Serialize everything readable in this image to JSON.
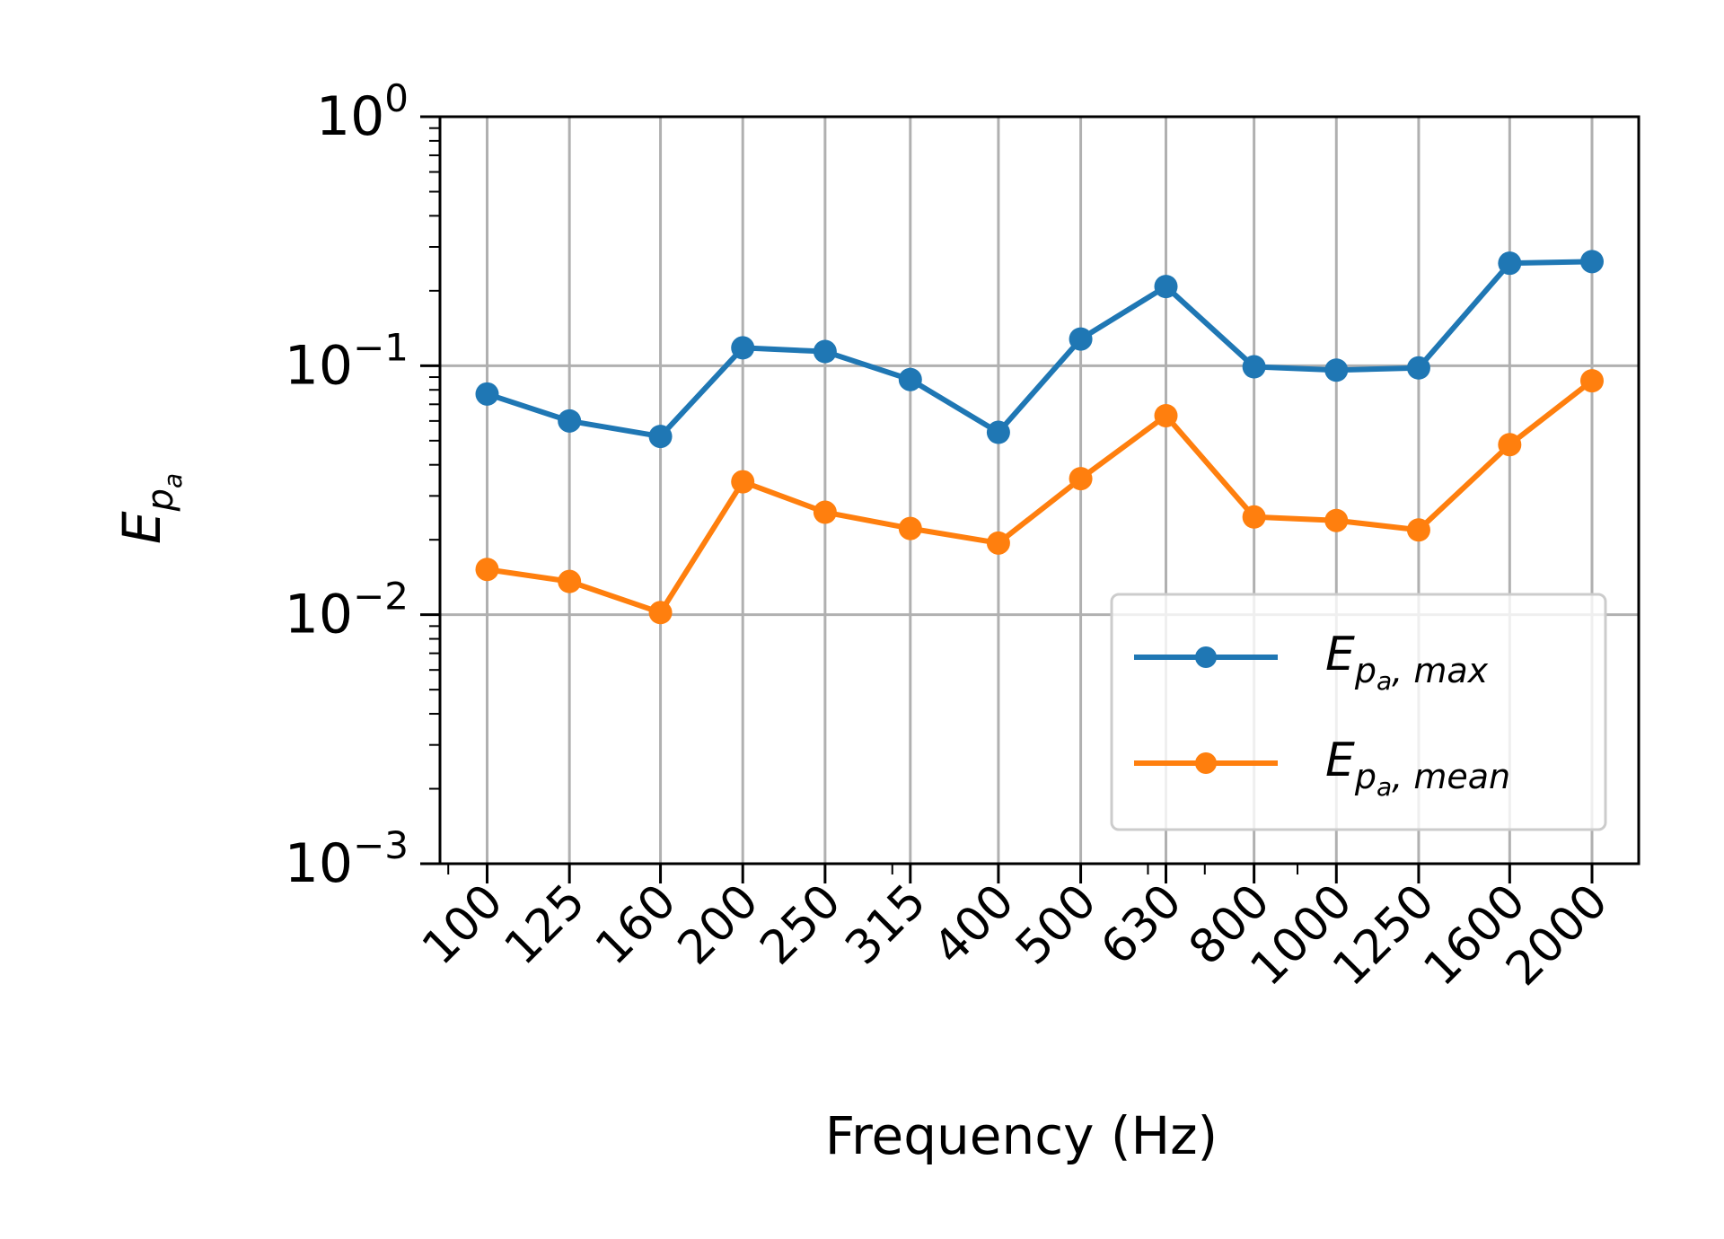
{
  "chart_data": {
    "type": "line",
    "xlabel": "Frequency (Hz)",
    "ylabel": "E",
    "ylabel_subscript": "p",
    "ylabel_subsubscript": "a",
    "yscale": "log",
    "ylim": [
      0.001,
      1
    ],
    "yticks": [
      {
        "base": "10",
        "exp": "0"
      },
      {
        "base": "10",
        "exp": "−1"
      },
      {
        "base": "10",
        "exp": "−2"
      },
      {
        "base": "10",
        "exp": "−3"
      }
    ],
    "categories": [
      "100",
      "125",
      "160",
      "200",
      "250",
      "315",
      "400",
      "500",
      "630",
      "800",
      "1000",
      "1250",
      "1600",
      "2000"
    ],
    "x": [
      100,
      125,
      160,
      200,
      250,
      315,
      400,
      500,
      630,
      800,
      1000,
      1250,
      1600,
      2000
    ],
    "grid": true,
    "legend_position": "lower-right",
    "series": [
      {
        "name": "E",
        "name_sub": "p",
        "name_subsub": "a",
        "name_suffix": ", max",
        "color": "#1f77b4",
        "marker": "circle",
        "values": [
          0.077,
          0.06,
          0.052,
          0.118,
          0.114,
          0.088,
          0.054,
          0.128,
          0.208,
          0.099,
          0.096,
          0.098,
          0.258,
          0.262
        ]
      },
      {
        "name": "E",
        "name_sub": "p",
        "name_subsub": "a",
        "name_suffix": ", mean",
        "color": "#ff7f0e",
        "marker": "circle",
        "values": [
          0.0152,
          0.0136,
          0.0102,
          0.0342,
          0.0258,
          0.0222,
          0.0194,
          0.0352,
          0.063,
          0.0247,
          0.0239,
          0.0219,
          0.0482,
          0.087
        ]
      }
    ]
  }
}
